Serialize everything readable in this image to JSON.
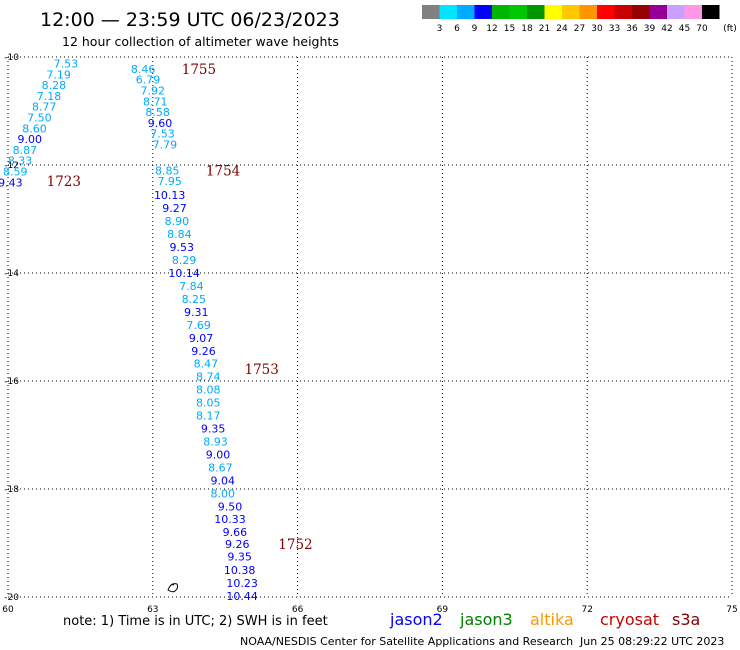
{
  "header": {
    "title": "12:00 — 23:59 UTC 06/23/2023",
    "subtitle": "12 hour collection of altimeter wave heights"
  },
  "colorbar": {
    "colors": [
      "#808080",
      "#00e5ff",
      "#00aaff",
      "#0000ff",
      "#00b400",
      "#00c800",
      "#009600",
      "#ffff00",
      "#ffc800",
      "#ff9600",
      "#ff0000",
      "#c80000",
      "#960000",
      "#960096",
      "#c8a0ff",
      "#ff96e6",
      "#000000"
    ],
    "labels": [
      "3",
      "6",
      "9",
      "12",
      "15",
      "18",
      "21",
      "24",
      "27",
      "30",
      "33",
      "36",
      "39",
      "42",
      "45",
      "70"
    ],
    "unit": "(ft)"
  },
  "chart_data": {
    "type": "scatter",
    "x_ticks": [
      "60",
      "63",
      "66",
      "69",
      "72",
      "75"
    ],
    "y_ticks": [
      "-10",
      "-12",
      "-14",
      "-16",
      "-18",
      "-20"
    ],
    "xlim": [
      60,
      75
    ],
    "ylim": [
      -20,
      -10
    ],
    "grid": true,
    "series": [
      {
        "pass": "1723",
        "time_label": {
          "text": "1723",
          "lon": 60.8,
          "lat": -12.3,
          "color": "#008000"
        },
        "color": "#00aaff",
        "points": [
          {
            "lon": 61.2,
            "lat": -10.12,
            "value": "7.53",
            "color": "#00aaff"
          },
          {
            "lon": 61.05,
            "lat": -10.32,
            "value": "7.19",
            "color": "#00aaff"
          },
          {
            "lon": 60.95,
            "lat": -10.52,
            "value": "8.28",
            "color": "#00aaff"
          },
          {
            "lon": 60.85,
            "lat": -10.72,
            "value": "7.18",
            "color": "#00aaff"
          },
          {
            "lon": 60.75,
            "lat": -10.92,
            "value": "8.77",
            "color": "#00aaff"
          },
          {
            "lon": 60.65,
            "lat": -11.12,
            "value": "7.50",
            "color": "#00aaff"
          },
          {
            "lon": 60.55,
            "lat": -11.32,
            "value": "8.60",
            "color": "#00aaff"
          },
          {
            "lon": 60.45,
            "lat": -11.52,
            "value": "9.00",
            "color": "#0000ff"
          },
          {
            "lon": 60.35,
            "lat": -11.72,
            "value": "8.87",
            "color": "#00aaff"
          },
          {
            "lon": 60.25,
            "lat": -11.92,
            "value": "8.33",
            "color": "#00aaff"
          },
          {
            "lon": 60.15,
            "lat": -12.12,
            "value": "8.59",
            "color": "#00aaff"
          },
          {
            "lon": 60.05,
            "lat": -12.32,
            "value": "9.43",
            "color": "#0000ff"
          }
        ]
      },
      {
        "pass": "1755",
        "time_label": {
          "text": "1755",
          "lon": 63.6,
          "lat": -10.22,
          "color": "#800000"
        },
        "color": "#00aaff",
        "points": [
          {
            "lon": 62.8,
            "lat": -10.22,
            "value": "8.46",
            "color": "#00aaff"
          },
          {
            "lon": 62.9,
            "lat": -10.42,
            "value": "6.79",
            "color": "#00aaff"
          },
          {
            "lon": 63.0,
            "lat": -10.62,
            "value": "7.92",
            "color": "#00aaff"
          },
          {
            "lon": 63.05,
            "lat": -10.82,
            "value": "8.71",
            "color": "#00aaff"
          },
          {
            "lon": 63.1,
            "lat": -11.02,
            "value": "8.58",
            "color": "#00aaff"
          },
          {
            "lon": 63.15,
            "lat": -11.22,
            "value": "9.60",
            "color": "#0000ff"
          },
          {
            "lon": 63.2,
            "lat": -11.42,
            "value": "7.53",
            "color": "#00aaff"
          },
          {
            "lon": 63.25,
            "lat": -11.62,
            "value": "7.79",
            "color": "#00aaff"
          }
        ]
      },
      {
        "pass": "1754",
        "time_label": {
          "text": "1754",
          "lon": 64.1,
          "lat": -12.1,
          "color": "#800000"
        },
        "color": "#00aaff",
        "points": [
          {
            "lon": 63.3,
            "lat": -12.1,
            "value": "8.85",
            "color": "#00aaff"
          },
          {
            "lon": 63.35,
            "lat": -12.3,
            "value": "7.95",
            "color": "#00aaff"
          },
          {
            "lon": 63.35,
            "lat": -12.56,
            "value": "10.13",
            "color": "#0000ff"
          },
          {
            "lon": 63.45,
            "lat": -12.8,
            "value": "9.27",
            "color": "#0000ff"
          },
          {
            "lon": 63.5,
            "lat": -13.04,
            "value": "8.90",
            "color": "#00aaff"
          },
          {
            "lon": 63.55,
            "lat": -13.28,
            "value": "8.84",
            "color": "#00aaff"
          },
          {
            "lon": 63.6,
            "lat": -13.52,
            "value": "9.53",
            "color": "#0000ff"
          },
          {
            "lon": 63.65,
            "lat": -13.76,
            "value": "8.29",
            "color": "#00aaff"
          },
          {
            "lon": 63.65,
            "lat": -14.0,
            "value": "10.14",
            "color": "#0000ff"
          }
        ]
      },
      {
        "pass": "1753",
        "time_label": {
          "text": "1753",
          "lon": 64.9,
          "lat": -15.78,
          "color": "#800000"
        },
        "color": "#00aaff",
        "points": [
          {
            "lon": 63.8,
            "lat": -14.24,
            "value": "7.84",
            "color": "#00aaff"
          },
          {
            "lon": 63.85,
            "lat": -14.48,
            "value": "8.25",
            "color": "#00aaff"
          },
          {
            "lon": 63.9,
            "lat": -14.72,
            "value": "9.31",
            "color": "#0000ff"
          },
          {
            "lon": 63.95,
            "lat": -14.96,
            "value": "7.69",
            "color": "#00aaff"
          },
          {
            "lon": 64.0,
            "lat": -15.2,
            "value": "9.07",
            "color": "#0000ff"
          },
          {
            "lon": 64.05,
            "lat": -15.44,
            "value": "9.26",
            "color": "#0000ff"
          },
          {
            "lon": 64.1,
            "lat": -15.68,
            "value": "8.47",
            "color": "#00aaff"
          },
          {
            "lon": 64.15,
            "lat": -15.92,
            "value": "8.74",
            "color": "#00aaff"
          },
          {
            "lon": 64.15,
            "lat": -16.16,
            "value": "8.08",
            "color": "#00aaff"
          },
          {
            "lon": 64.15,
            "lat": -16.4,
            "value": "8.05",
            "color": "#00aaff"
          },
          {
            "lon": 64.15,
            "lat": -16.64,
            "value": "8.17",
            "color": "#00aaff"
          },
          {
            "lon": 64.25,
            "lat": -16.88,
            "value": "9.35",
            "color": "#0000ff"
          },
          {
            "lon": 64.3,
            "lat": -17.12,
            "value": "8.93",
            "color": "#00aaff"
          },
          {
            "lon": 64.35,
            "lat": -17.36,
            "value": "9.00",
            "color": "#0000ff"
          },
          {
            "lon": 64.4,
            "lat": -17.6,
            "value": "8.67",
            "color": "#00aaff"
          },
          {
            "lon": 64.45,
            "lat": -17.84,
            "value": "9.04",
            "color": "#0000ff"
          },
          {
            "lon": 64.45,
            "lat": -18.08,
            "value": "8.00",
            "color": "#00aaff"
          }
        ]
      },
      {
        "pass": "1752",
        "time_label": {
          "text": "1752",
          "lon": 65.6,
          "lat": -19.02,
          "color": "#800000"
        },
        "color": "#0000ff",
        "points": [
          {
            "lon": 64.6,
            "lat": -18.32,
            "value": "9.50",
            "color": "#0000ff"
          },
          {
            "lon": 64.6,
            "lat": -18.56,
            "value": "10.33",
            "color": "#0000ff"
          },
          {
            "lon": 64.7,
            "lat": -18.8,
            "value": "9.66",
            "color": "#0000ff"
          },
          {
            "lon": 64.75,
            "lat": -19.02,
            "value": "9.26",
            "color": "#0000ff"
          },
          {
            "lon": 64.8,
            "lat": -19.25,
            "value": "9.35",
            "color": "#0000ff"
          },
          {
            "lon": 64.8,
            "lat": -19.5,
            "value": "10.38",
            "color": "#0000ff"
          },
          {
            "lon": 64.85,
            "lat": -19.74,
            "value": "10.23",
            "color": "#0000ff"
          },
          {
            "lon": 64.85,
            "lat": -19.98,
            "value": "10.44",
            "color": "#0000ff"
          }
        ]
      }
    ]
  },
  "note": "note:  1) Time is in UTC; 2) SWH is in feet",
  "satellites": [
    {
      "name": "jason2",
      "color": "#0000ff"
    },
    {
      "name": "jason3",
      "color": "#008000"
    },
    {
      "name": "altika",
      "color": "#ff9600"
    },
    {
      "name": "cryosat",
      "color": "#c80000"
    },
    {
      "name": "s3a",
      "color": "#800000"
    }
  ],
  "footer": {
    "credit": "NOAA/NESDIS Center for Satellite Applications and Research",
    "timestamp": "Jun 25 08:29:22 UTC 2023"
  }
}
